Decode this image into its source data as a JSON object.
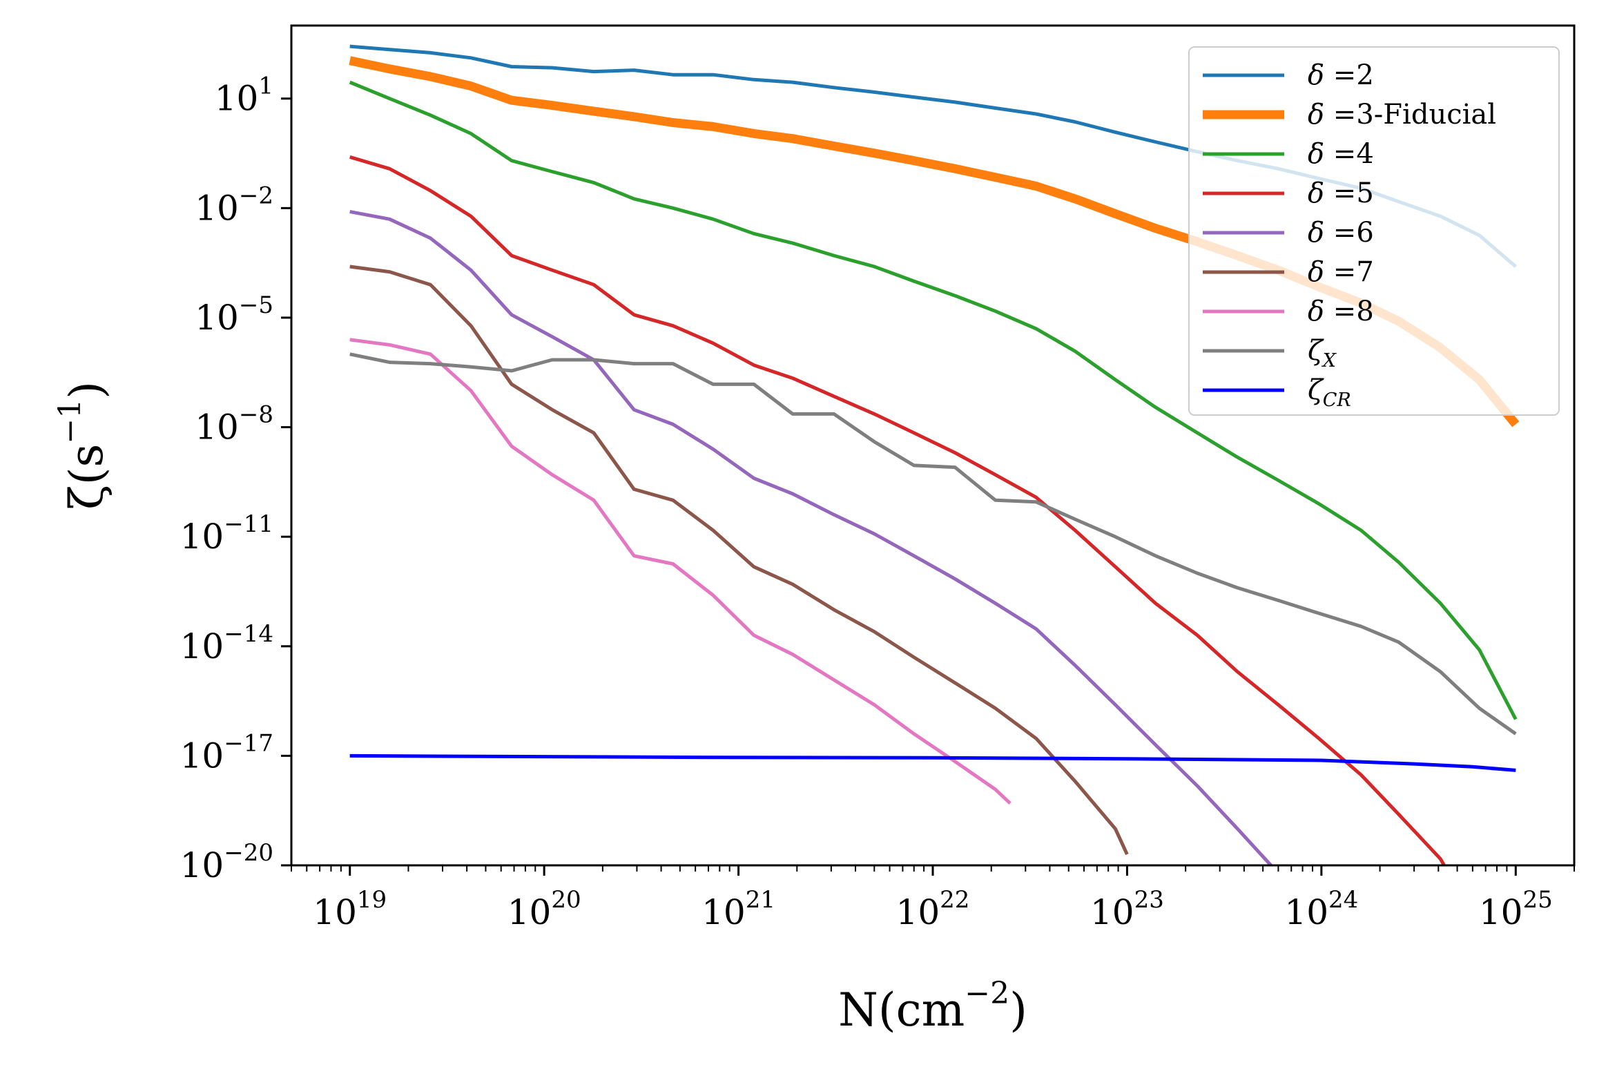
{
  "chart_data": {
    "type": "line",
    "xlabel": "N(cm^-2)",
    "ylabel": "ζ(s^-1)",
    "xscale": "log",
    "yscale": "log",
    "xlim": [
      5e+18,
      2e+25
    ],
    "ylim": [
      1e-20,
      1000.0
    ],
    "x_tick_exponents": [
      19,
      20,
      21,
      22,
      23,
      24,
      25
    ],
    "y_tick_exponents": [
      1,
      -2,
      -5,
      -8,
      -11,
      -14,
      -17,
      -20
    ],
    "grid": false,
    "legend_position": "top-right",
    "series": [
      {
        "name": "δ =2",
        "legend_symbol": "δ",
        "legend_suffix": " =2",
        "color": "#1f77b4",
        "line_width": 5,
        "points": [
          [
            1e+19,
            270
          ],
          [
            1.6e+19,
            220
          ],
          [
            2.6e+19,
            180
          ],
          [
            4.2e+19,
            130
          ],
          [
            6.8e+19,
            75
          ],
          [
            1.1e+20,
            70
          ],
          [
            1.8e+20,
            55
          ],
          [
            2.9e+20,
            60
          ],
          [
            4.6e+20,
            45
          ],
          [
            7.4e+20,
            45
          ],
          [
            1.2e+21,
            33
          ],
          [
            1.9e+21,
            28
          ],
          [
            3.1e+21,
            20
          ],
          [
            5e+21,
            15
          ],
          [
            8e+21,
            11
          ],
          [
            1.3e+22,
            8
          ],
          [
            2.1e+22,
            5.5
          ],
          [
            3.4e+22,
            3.8
          ],
          [
            5.4e+22,
            2.3
          ],
          [
            8.7e+22,
            1.2
          ],
          [
            1.4e+23,
            0.65
          ],
          [
            2.3e+23,
            0.35
          ],
          [
            3.7e+23,
            0.2
          ],
          [
            6e+23,
            0.12
          ],
          [
            9.7e+23,
            0.065
          ],
          [
            1.6e+24,
            0.035
          ],
          [
            2.5e+24,
            0.015
          ],
          [
            4.1e+24,
            0.006
          ],
          [
            6.5e+24,
            0.0018
          ],
          [
            1e+25,
            0.00025
          ]
        ]
      },
      {
        "name": "δ =3-Fiducial",
        "legend_symbol": "δ",
        "legend_suffix": " =3-Fiducial",
        "color": "#ff7f0e",
        "line_width": 13,
        "points": [
          [
            1e+19,
            110
          ],
          [
            1.6e+19,
            65
          ],
          [
            2.6e+19,
            40
          ],
          [
            4.2e+19,
            22
          ],
          [
            6.8e+19,
            9
          ],
          [
            1.1e+20,
            6.5
          ],
          [
            1.8e+20,
            4.5
          ],
          [
            2.9e+20,
            3.2
          ],
          [
            4.6e+20,
            2.2
          ],
          [
            7.4e+20,
            1.7
          ],
          [
            1.2e+21,
            1.1
          ],
          [
            1.9e+21,
            0.8
          ],
          [
            3.1e+21,
            0.5
          ],
          [
            5e+21,
            0.32
          ],
          [
            8e+21,
            0.2
          ],
          [
            1.3e+22,
            0.12
          ],
          [
            2.1e+22,
            0.07
          ],
          [
            3.4e+22,
            0.04
          ],
          [
            5.4e+22,
            0.018
          ],
          [
            8.7e+22,
            0.007
          ],
          [
            1.4e+23,
            0.0028
          ],
          [
            2.3e+23,
            0.0012
          ],
          [
            3.7e+23,
            0.0005
          ],
          [
            6e+23,
            0.0002
          ],
          [
            9.7e+23,
            7e-05
          ],
          [
            1.6e+24,
            2.5e-05
          ],
          [
            2.5e+24,
            8e-06
          ],
          [
            4.1e+24,
            1.5e-06
          ],
          [
            6.5e+24,
            2e-07
          ],
          [
            1e+25,
            1.2e-08
          ]
        ]
      },
      {
        "name": "δ =4",
        "legend_symbol": "δ",
        "legend_suffix": " =4",
        "color": "#2ca02c",
        "line_width": 5,
        "points": [
          [
            1e+19,
            28
          ],
          [
            1.6e+19,
            10
          ],
          [
            2.6e+19,
            3.5
          ],
          [
            4.2e+19,
            1.1
          ],
          [
            6.8e+19,
            0.2
          ],
          [
            1.1e+20,
            0.1
          ],
          [
            1.8e+20,
            0.05
          ],
          [
            2.9e+20,
            0.018
          ],
          [
            4.6e+20,
            0.01
          ],
          [
            7.4e+20,
            0.005
          ],
          [
            1.2e+21,
            0.002
          ],
          [
            1.9e+21,
            0.0011
          ],
          [
            3.1e+21,
            0.0005
          ],
          [
            5e+21,
            0.00025
          ],
          [
            8e+21,
            0.0001
          ],
          [
            1.3e+22,
            4e-05
          ],
          [
            2.1e+22,
            1.5e-05
          ],
          [
            3.4e+22,
            5e-06
          ],
          [
            5.4e+22,
            1.2e-06
          ],
          [
            8.7e+22,
            2e-07
          ],
          [
            1.4e+23,
            3.5e-08
          ],
          [
            2.3e+23,
            7e-09
          ],
          [
            3.7e+23,
            1.5e-09
          ],
          [
            6e+23,
            3.5e-10
          ],
          [
            9.7e+23,
            8e-11
          ],
          [
            1.6e+24,
            1.5e-11
          ],
          [
            2.5e+24,
            2e-12
          ],
          [
            4.1e+24,
            1.5e-13
          ],
          [
            6.5e+24,
            8e-15
          ],
          [
            1e+25,
            1e-16
          ]
        ]
      },
      {
        "name": "δ =5",
        "legend_symbol": "δ",
        "legend_suffix": " =5",
        "color": "#d62728",
        "line_width": 5,
        "points": [
          [
            1e+19,
            0.25
          ],
          [
            1.6e+19,
            0.12
          ],
          [
            2.6e+19,
            0.03
          ],
          [
            4.2e+19,
            0.006
          ],
          [
            6.8e+19,
            0.0005
          ],
          [
            1.1e+20,
            0.0002
          ],
          [
            1.8e+20,
            8e-05
          ],
          [
            2.9e+20,
            1.2e-05
          ],
          [
            4.6e+20,
            6e-06
          ],
          [
            7.4e+20,
            2e-06
          ],
          [
            1.2e+21,
            5e-07
          ],
          [
            1.9e+21,
            2.2e-07
          ],
          [
            3.1e+21,
            7e-08
          ],
          [
            5e+21,
            2.3e-08
          ],
          [
            8e+21,
            7e-09
          ],
          [
            1.3e+22,
            2e-09
          ],
          [
            2.1e+22,
            5e-10
          ],
          [
            3.4e+22,
            1.2e-10
          ],
          [
            5.4e+22,
            1.5e-11
          ],
          [
            8.7e+22,
            1.5e-12
          ],
          [
            1.4e+23,
            1.5e-13
          ],
          [
            2.3e+23,
            2e-14
          ],
          [
            3.7e+23,
            2e-15
          ],
          [
            6e+23,
            2.5e-16
          ],
          [
            9.7e+23,
            3e-17
          ],
          [
            1.6e+24,
            3e-18
          ],
          [
            2.5e+24,
            2.5e-19
          ],
          [
            4.1e+24,
            1.5e-20
          ],
          [
            5.5e+24,
            1e-21
          ]
        ]
      },
      {
        "name": "δ =6",
        "legend_symbol": "δ",
        "legend_suffix": " =6",
        "color": "#9467bd",
        "line_width": 5,
        "points": [
          [
            1e+19,
            0.008
          ],
          [
            1.6e+19,
            0.005
          ],
          [
            2.6e+19,
            0.0015
          ],
          [
            4.2e+19,
            0.0002
          ],
          [
            6.8e+19,
            1.2e-05
          ],
          [
            1.1e+20,
            3e-06
          ],
          [
            1.8e+20,
            7e-07
          ],
          [
            2.9e+20,
            3e-08
          ],
          [
            4.6e+20,
            1.2e-08
          ],
          [
            7.4e+20,
            2.5e-09
          ],
          [
            1.2e+21,
            4e-10
          ],
          [
            1.9e+21,
            1.5e-10
          ],
          [
            3.1e+21,
            4e-11
          ],
          [
            5e+21,
            1.2e-11
          ],
          [
            8e+21,
            3e-12
          ],
          [
            1.3e+22,
            7e-13
          ],
          [
            2.1e+22,
            1.5e-13
          ],
          [
            3.4e+22,
            3e-14
          ],
          [
            5.4e+22,
            3e-15
          ],
          [
            8.7e+22,
            2.5e-16
          ],
          [
            1.4e+23,
            2e-17
          ],
          [
            2.3e+23,
            1.5e-18
          ],
          [
            3.7e+23,
            1e-19
          ],
          [
            5.5e+23,
            1e-20
          ]
        ]
      },
      {
        "name": "δ =7",
        "legend_symbol": "δ",
        "legend_suffix": " =7",
        "color": "#8c564b",
        "line_width": 5,
        "points": [
          [
            1e+19,
            0.00025
          ],
          [
            1.6e+19,
            0.00018
          ],
          [
            2.6e+19,
            8e-05
          ],
          [
            4.2e+19,
            6e-06
          ],
          [
            6.8e+19,
            1.5e-07
          ],
          [
            1.1e+20,
            3e-08
          ],
          [
            1.8e+20,
            7e-09
          ],
          [
            2.9e+20,
            2e-10
          ],
          [
            4.6e+20,
            1e-10
          ],
          [
            7.4e+20,
            1.5e-11
          ],
          [
            1.2e+21,
            1.5e-12
          ],
          [
            1.9e+21,
            5e-13
          ],
          [
            3.1e+21,
            1e-13
          ],
          [
            5e+21,
            2.5e-14
          ],
          [
            8e+21,
            5e-15
          ],
          [
            1.3e+22,
            1e-15
          ],
          [
            2.1e+22,
            2e-16
          ],
          [
            3.4e+22,
            3e-17
          ],
          [
            5.4e+22,
            2e-18
          ],
          [
            8.7e+22,
            1e-19
          ],
          [
            1e+23,
            2e-20
          ]
        ]
      },
      {
        "name": "δ =8",
        "legend_symbol": "δ",
        "legend_suffix": " =8",
        "color": "#e377c2",
        "line_width": 5,
        "points": [
          [
            1e+19,
            2.5e-06
          ],
          [
            1.6e+19,
            1.8e-06
          ],
          [
            2.6e+19,
            1e-06
          ],
          [
            4.2e+19,
            1e-07
          ],
          [
            6.8e+19,
            3e-09
          ],
          [
            1.1e+20,
            5e-10
          ],
          [
            1.8e+20,
            1e-10
          ],
          [
            2.9e+20,
            3e-12
          ],
          [
            4.6e+20,
            1.8e-12
          ],
          [
            7.4e+20,
            2.5e-13
          ],
          [
            1.2e+21,
            2e-14
          ],
          [
            1.9e+21,
            6e-15
          ],
          [
            3.1e+21,
            1.2e-15
          ],
          [
            5e+21,
            2.5e-16
          ],
          [
            8e+21,
            4e-17
          ],
          [
            1.3e+22,
            7e-18
          ],
          [
            2.1e+22,
            1.2e-18
          ],
          [
            2.5e+22,
            5e-19
          ]
        ]
      },
      {
        "name": "ζX",
        "legend_symbol": "ζ",
        "legend_sub": "X",
        "color": "#7f7f7f",
        "line_width": 5,
        "points": [
          [
            1e+19,
            1e-06
          ],
          [
            1.6e+19,
            6e-07
          ],
          [
            2.6e+19,
            5.5e-07
          ],
          [
            4.2e+19,
            4.5e-07
          ],
          [
            6.8e+19,
            3.5e-07
          ],
          [
            1.1e+20,
            7e-07
          ],
          [
            1.8e+20,
            7e-07
          ],
          [
            2.9e+20,
            5.5e-07
          ],
          [
            4.6e+20,
            5.5e-07
          ],
          [
            7.4e+20,
            1.5e-07
          ],
          [
            1.2e+21,
            1.5e-07
          ],
          [
            1.9e+21,
            2.3e-08
          ],
          [
            3.1e+21,
            2.3e-08
          ],
          [
            5e+21,
            4e-09
          ],
          [
            8e+21,
            9e-10
          ],
          [
            1.3e+22,
            8e-10
          ],
          [
            2.1e+22,
            1e-10
          ],
          [
            3.4e+22,
            9e-11
          ],
          [
            5.4e+22,
            3e-11
          ],
          [
            8.7e+22,
            1e-11
          ],
          [
            1.4e+23,
            3e-12
          ],
          [
            2.3e+23,
            1e-12
          ],
          [
            3.7e+23,
            4e-13
          ],
          [
            6e+23,
            1.8e-13
          ],
          [
            9.7e+23,
            8e-14
          ],
          [
            1.6e+24,
            3.5e-14
          ],
          [
            2.5e+24,
            1.3e-14
          ],
          [
            4.1e+24,
            2e-15
          ],
          [
            6.5e+24,
            2e-16
          ],
          [
            1e+25,
            4e-17
          ]
        ]
      },
      {
        "name": "ζCR",
        "legend_symbol": "ζ",
        "legend_sub": "CR",
        "color": "#0000ff",
        "line_width": 5,
        "points": [
          [
            1e+19,
            1e-17
          ],
          [
            1e+20,
            9.5e-18
          ],
          [
            1e+21,
            9e-18
          ],
          [
            1e+22,
            8.8e-18
          ],
          [
            1e+23,
            8.3e-18
          ],
          [
            1e+24,
            7.5e-18
          ],
          [
            3e+24,
            6e-18
          ],
          [
            6e+24,
            5e-18
          ],
          [
            1e+25,
            4e-18
          ]
        ]
      }
    ]
  }
}
